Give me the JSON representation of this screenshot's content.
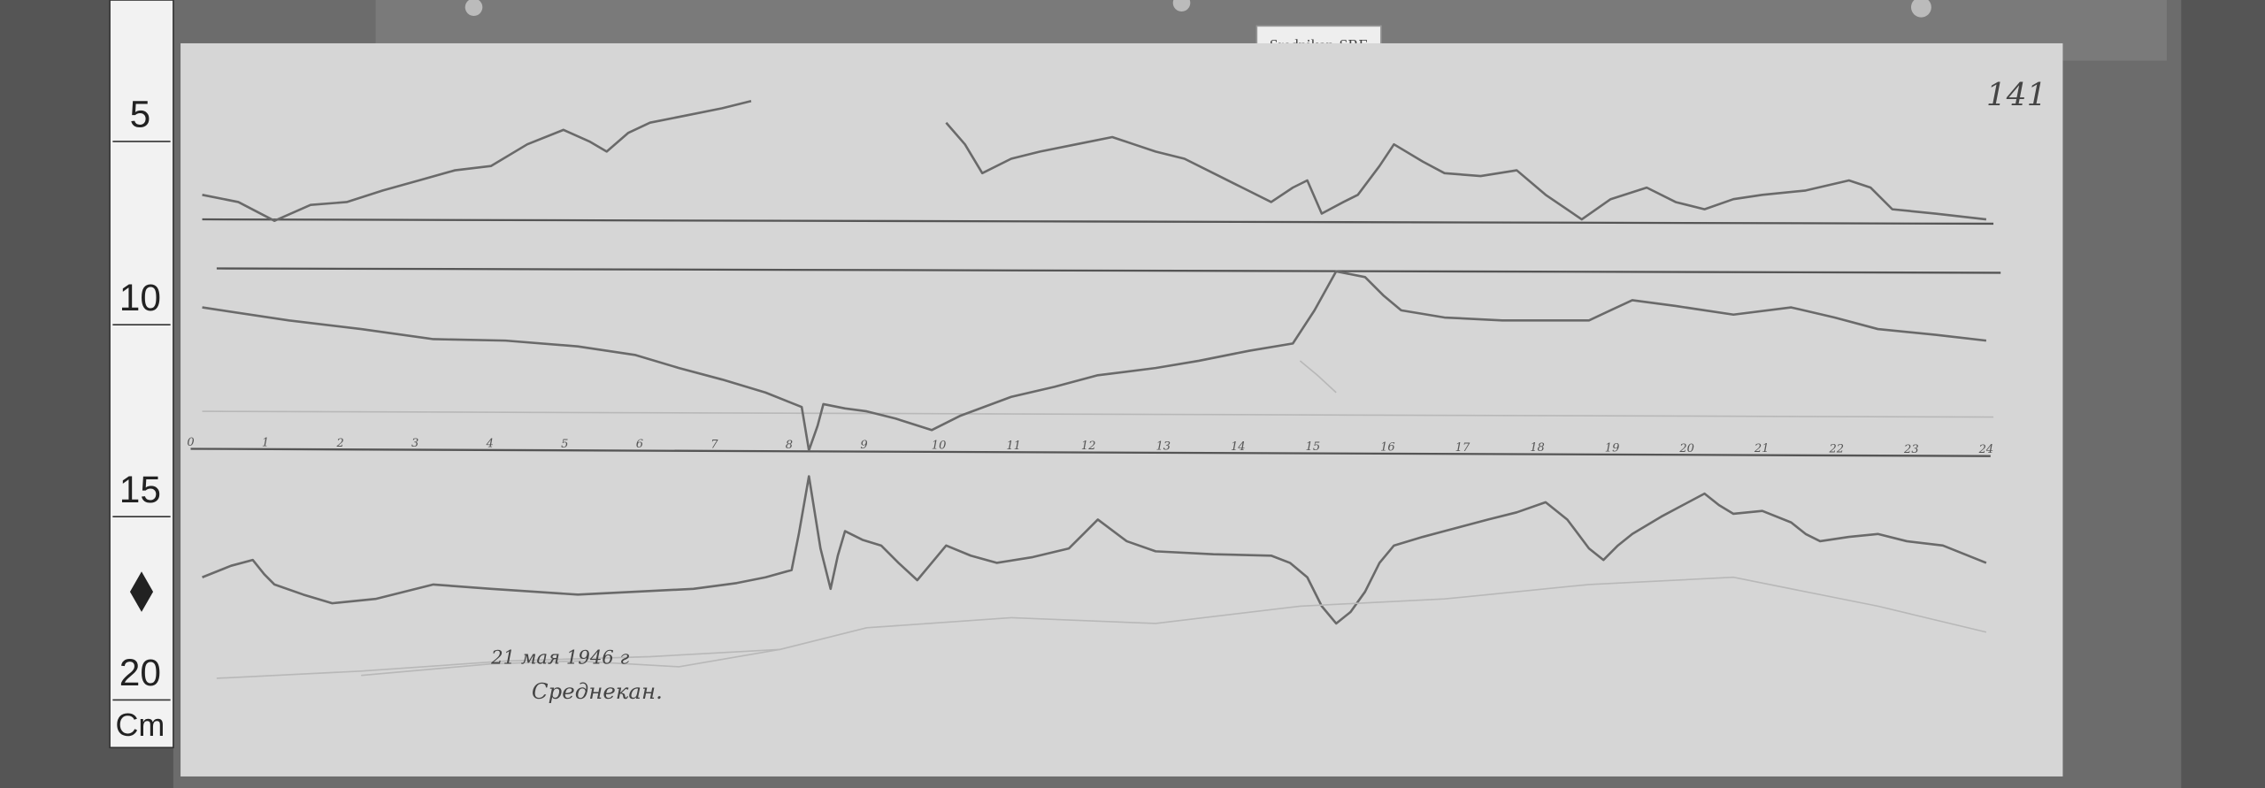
{
  "station_label": "Srednikan-SRE",
  "sheet_number": "141",
  "ruler": {
    "marks": [
      "5",
      "10",
      "15",
      "20"
    ],
    "unit": "Cm"
  },
  "hour_labels": [
    "0",
    "1",
    "2",
    "3",
    "4",
    "5",
    "6",
    "7",
    "8",
    "9",
    "10",
    "11",
    "12",
    "13",
    "14",
    "15",
    "16",
    "17",
    "18",
    "19",
    "20",
    "21",
    "22",
    "23",
    "24"
  ],
  "handwritten": {
    "date": "21 мая 1946 г",
    "place": "Среднекан."
  },
  "colors": {
    "paper": "#d6d6d6",
    "wood": "#5a5a5a",
    "ruler": "#f2f2f2",
    "trace": "#6a6a6a"
  }
}
